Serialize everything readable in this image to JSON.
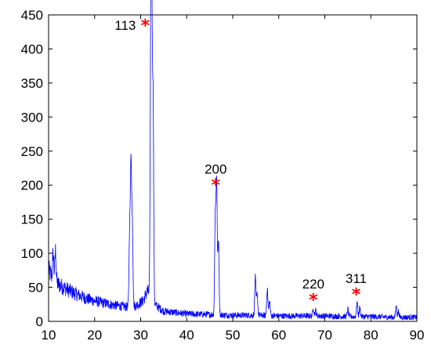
{
  "chart_data": {
    "type": "line",
    "title": "",
    "xlabel": "",
    "ylabel": "",
    "xlim": [
      10,
      90
    ],
    "ylim": [
      0,
      450
    ],
    "xticks": [
      10,
      20,
      30,
      40,
      50,
      60,
      70,
      80,
      90
    ],
    "yticks": [
      0,
      50,
      100,
      150,
      200,
      250,
      300,
      350,
      400,
      450
    ],
    "grid": false,
    "line_color": "#0000ff",
    "marker_color": "#ff0000",
    "baseline": {
      "x": [
        10,
        11,
        12,
        14,
        16,
        18,
        20,
        22,
        24,
        26,
        27.5,
        29,
        30.5,
        31.5,
        33,
        35,
        40,
        45,
        50,
        55,
        60,
        65,
        70,
        75,
        80,
        85,
        90
      ],
      "y": [
        75,
        62,
        55,
        47,
        40,
        34,
        30,
        27,
        24,
        22,
        21,
        23,
        30,
        45,
        25,
        15,
        11,
        10,
        9,
        9,
        8,
        8,
        8,
        7,
        7,
        6,
        6
      ]
    },
    "series": [
      {
        "x": [
          11.0,
          11.5,
          27.6,
          27.9,
          28.2,
          32.2,
          32.4,
          32.7,
          46.2,
          46.5,
          46.9,
          54.9,
          55.3,
          57.5,
          58.0,
          67.5,
          68.0,
          75.0,
          77.0,
          77.6,
          85.5,
          86.0
        ],
        "y": [
          100,
          105,
          130,
          235,
          140,
          395,
          437,
          320,
          150,
          205,
          120,
          65,
          40,
          48,
          30,
          20,
          16,
          18,
          28,
          20,
          22,
          15
        ]
      }
    ],
    "peak_labels": [
      {
        "label": "113",
        "x": 31.0,
        "y": 435
      },
      {
        "label": "200",
        "x": 46.3,
        "y": 201
      },
      {
        "label": "220",
        "x": 67.5,
        "y": 32
      },
      {
        "label": "311",
        "x": 76.8,
        "y": 40
      }
    ]
  }
}
